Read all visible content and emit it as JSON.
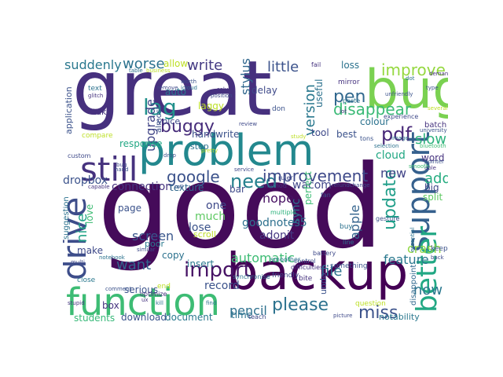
{
  "words": [
    {
      "text": "great",
      "color": "#46307e"
    },
    {
      "text": "good",
      "color": "#450b5a"
    },
    {
      "text": "bug",
      "color": "#7ad151"
    },
    {
      "text": "problem",
      "color": "#23888e"
    },
    {
      "text": "backup",
      "color": "#440154"
    },
    {
      "text": "function",
      "color": "#3dbc74"
    },
    {
      "text": "support",
      "color": "#35608d"
    },
    {
      "text": "better",
      "color": "#22a884"
    },
    {
      "text": "still",
      "color": "#46327e"
    },
    {
      "text": "drive",
      "color": "#3d4d8a"
    },
    {
      "text": "need",
      "color": "#26818e"
    },
    {
      "text": "improvement",
      "color": "#3e4989"
    },
    {
      "text": "google",
      "color": "#3b528b"
    },
    {
      "text": "lag",
      "color": "#21918c"
    },
    {
      "text": "import",
      "color": "#471365"
    },
    {
      "text": "please",
      "color": "#2c728e"
    },
    {
      "text": "miss",
      "color": "#3b528b"
    },
    {
      "text": "version",
      "color": "#2a788e"
    },
    {
      "text": "improve",
      "color": "#95d840"
    },
    {
      "text": "update",
      "color": "#1f9e89"
    },
    {
      "text": "pdf",
      "color": "#482878"
    },
    {
      "text": "pen",
      "color": "#31688e"
    },
    {
      "text": "disappear",
      "color": "#3aba76"
    },
    {
      "text": "buggy",
      "color": "#472d7b"
    },
    {
      "text": "little",
      "color": "#3b528b"
    },
    {
      "text": "write",
      "color": "#443a83"
    },
    {
      "text": "worse",
      "color": "#2c728e"
    },
    {
      "text": "suddenly",
      "color": "#2a788e"
    },
    {
      "text": "upgrade",
      "color": "#414487"
    },
    {
      "text": "stylus",
      "color": "#31688e"
    },
    {
      "text": "slow",
      "color": "#2db27d"
    },
    {
      "text": "add",
      "color": "#27ad81"
    },
    {
      "text": "function_small",
      "color": "#21918c"
    },
    {
      "text": "nice",
      "color": "#20a386"
    },
    {
      "text": "want",
      "color": "#33638d"
    },
    {
      "text": "screen",
      "color": "#39568c"
    },
    {
      "text": "pencil",
      "color": "#2d708e"
    },
    {
      "text": "feature",
      "color": "#2a788e"
    },
    {
      "text": "apple",
      "color": "#33638d"
    },
    {
      "text": "file",
      "color": "#2c728e"
    },
    {
      "text": "automatic",
      "color": "#3dbc74"
    },
    {
      "text": "record",
      "color": "#3b528b"
    },
    {
      "text": "crash",
      "color": "#8fd744"
    },
    {
      "text": "new",
      "color": "#414487"
    },
    {
      "text": "now",
      "color": "#2a788e"
    },
    {
      "text": "dropbox",
      "color": "#3b528b"
    },
    {
      "text": "connection",
      "color": "#46337f"
    },
    {
      "text": "texture",
      "color": "#31688e"
    },
    {
      "text": "much",
      "color": "#5ec962"
    },
    {
      "text": "one",
      "color": "#3e4989"
    },
    {
      "text": "lose",
      "color": "#3b528b"
    },
    {
      "text": "hope",
      "color": "#471063"
    },
    {
      "text": "wacom",
      "color": "#404688"
    },
    {
      "text": "sync",
      "color": "#2c728e"
    },
    {
      "text": "perfect",
      "color": "#3dbc74"
    },
    {
      "text": "goodnotes5",
      "color": "#2d708e"
    },
    {
      "text": "adonit",
      "color": "#453882"
    },
    {
      "text": "page",
      "color": "#3b528b"
    },
    {
      "text": "insert",
      "color": "#2a788e"
    },
    {
      "text": "copy",
      "color": "#2c728e"
    },
    {
      "text": "download",
      "color": "#3a548c"
    },
    {
      "text": "document",
      "color": "#2a788e"
    },
    {
      "text": "students",
      "color": "#37b878"
    },
    {
      "text": "serious",
      "color": "#3b528b"
    },
    {
      "text": "make",
      "color": "#3e4989"
    },
    {
      "text": "box",
      "color": "#46337f"
    },
    {
      "text": "time",
      "color": "#2c728e"
    },
    {
      "text": "undo",
      "color": "#3b528b"
    },
    {
      "text": "notability",
      "color": "#2a788e"
    },
    {
      "text": "disappoint",
      "color": "#31688e"
    },
    {
      "text": "split",
      "color": "#5ec962"
    },
    {
      "text": "big",
      "color": "#404688"
    },
    {
      "text": "word",
      "color": "#46337f"
    },
    {
      "text": "cloud",
      "color": "#22a884"
    },
    {
      "text": "colour",
      "color": "#2c728e"
    },
    {
      "text": "tool",
      "color": "#3e4989"
    },
    {
      "text": "best",
      "color": "#3b528b"
    },
    {
      "text": "useful",
      "color": "#2c728e"
    },
    {
      "text": "delay",
      "color": "#3e4989"
    },
    {
      "text": "auto",
      "color": "#2a788e"
    },
    {
      "text": "laggy",
      "color": "#bddf26"
    },
    {
      "text": "handwrite",
      "color": "#3b528b"
    },
    {
      "text": "response",
      "color": "#22a884"
    },
    {
      "text": "stop",
      "color": "#2c728e"
    },
    {
      "text": "voice",
      "color": "#3e4989"
    },
    {
      "text": "almost",
      "color": "#3b528b"
    },
    {
      "text": "allow",
      "color": "#bddf26"
    },
    {
      "text": "loss",
      "color": "#2c728e"
    },
    {
      "text": "take",
      "color": "#46337f"
    },
    {
      "text": "application",
      "color": "#3b528b"
    },
    {
      "text": "suggestion",
      "color": "#2c728e"
    },
    {
      "text": "love",
      "color": "#3dbc74"
    },
    {
      "text": "bar",
      "color": "#3e4989"
    },
    {
      "text": "scroll",
      "color": "#bddf26"
    },
    {
      "text": "poor",
      "color": "#2a788e"
    },
    {
      "text": "batch",
      "color": "#46337f"
    },
    {
      "text": "keep",
      "color": "#3b528b"
    },
    {
      "text": "text",
      "color": "#2c728e"
    },
    {
      "text": "compare",
      "color": "#bddf26"
    },
    {
      "text": "custom",
      "color": "#3e4989"
    },
    {
      "text": "close",
      "color": "#2a788e"
    },
    {
      "text": "bite",
      "color": "#46337f"
    },
    {
      "text": "something",
      "color": "#3b528b"
    },
    {
      "text": "question",
      "color": "#bddf26"
    },
    {
      "text": "friendly",
      "color": "#3e4989"
    },
    {
      "text": "buy",
      "color": "#2c728e"
    },
    {
      "text": "mirror",
      "color": "#46337f"
    },
    {
      "text": "don",
      "color": "#3b528b"
    },
    {
      "text": "end",
      "color": "#bddf26"
    },
    {
      "text": "experience",
      "color": "#3e4989"
    },
    {
      "text": "paste",
      "color": "#2c728e"
    },
    {
      "text": "fail",
      "color": "#46337f"
    },
    {
      "text": "tons",
      "color": "#3b528b"
    },
    {
      "text": "teach",
      "color": "#3e4989"
    },
    {
      "text": "fan",
      "color": "#3b528b"
    },
    {
      "text": "synchronise",
      "color": "#2c728e"
    },
    {
      "text": "difficulties",
      "color": "#46337f"
    },
    {
      "text": "battery",
      "color": "#3e4989"
    },
    {
      "text": "line",
      "color": "#2c728e"
    },
    {
      "text": "gesture",
      "color": "#3b528b"
    },
    {
      "text": "optimize",
      "color": "#46337f"
    },
    {
      "text": "ruler",
      "color": "#3e4989"
    },
    {
      "text": "smoother",
      "color": "#2c728e"
    },
    {
      "text": "control",
      "color": "#3b528b"
    },
    {
      "text": "method",
      "color": "#46337f"
    },
    {
      "text": "multiple",
      "color": "#2db27d"
    },
    {
      "text": "refundchange",
      "color": "#3e4989"
    },
    {
      "text": "selection",
      "color": "#2c728e"
    },
    {
      "text": "university",
      "color": "#3b528b"
    },
    {
      "text": "bluetooth",
      "color": "#3dbc74"
    },
    {
      "text": "similar",
      "color": "#3e4989"
    },
    {
      "text": "notebook",
      "color": "#2c728e"
    },
    {
      "text": "hand",
      "color": "#3b528b"
    },
    {
      "text": "capable",
      "color": "#46337f"
    },
    {
      "text": "review",
      "color": "#3e4989"
    },
    {
      "text": "find",
      "color": "#2c728e"
    },
    {
      "text": "comment",
      "color": "#3b528b"
    },
    {
      "text": "stupid",
      "color": "#46337f"
    },
    {
      "text": "multi",
      "color": "#3e4989"
    },
    {
      "text": "image",
      "color": "#2c728e"
    },
    {
      "text": "pointer",
      "color": "#3b528b"
    },
    {
      "text": "able",
      "color": "#46337f"
    },
    {
      "text": "back",
      "color": "#3e4989"
    },
    {
      "text": "several",
      "color": "#bddf26"
    },
    {
      "text": "dot",
      "color": "#2c728e"
    },
    {
      "text": "type",
      "color": "#3b528b"
    },
    {
      "text": "demand",
      "color": "#46337f"
    },
    {
      "text": "remove",
      "color": "#3e4989"
    },
    {
      "text": "icloud",
      "color": "#2c728e"
    },
    {
      "text": "worth",
      "color": "#3b528b"
    },
    {
      "text": "solve",
      "color": "#46337f"
    },
    {
      "text": "position",
      "color": "#3e4989"
    },
    {
      "text": "table",
      "color": "#2c728e"
    },
    {
      "text": "business",
      "color": "#bddf26"
    },
    {
      "text": "glitch",
      "color": "#46337f"
    },
    {
      "text": "drop",
      "color": "#3b528b"
    },
    {
      "text": "pretty",
      "color": "#bddf26"
    },
    {
      "text": "smooth",
      "color": "#3dbc74"
    },
    {
      "text": "service",
      "color": "#3e4989"
    },
    {
      "text": "kill",
      "color": "#2c728e"
    },
    {
      "text": "roll",
      "color": "#3b528b"
    },
    {
      "text": "ux",
      "color": "#46337f"
    },
    {
      "text": "bug_small",
      "color": "#3e4989"
    },
    {
      "text": "essential",
      "color": "#2c728e"
    },
    {
      "text": "unfriendly",
      "color": "#3b528b"
    },
    {
      "text": "lot",
      "color": "#46337f"
    },
    {
      "text": "study",
      "color": "#bddf26"
    },
    {
      "text": "picture",
      "color": "#3e4989"
    }
  ]
}
